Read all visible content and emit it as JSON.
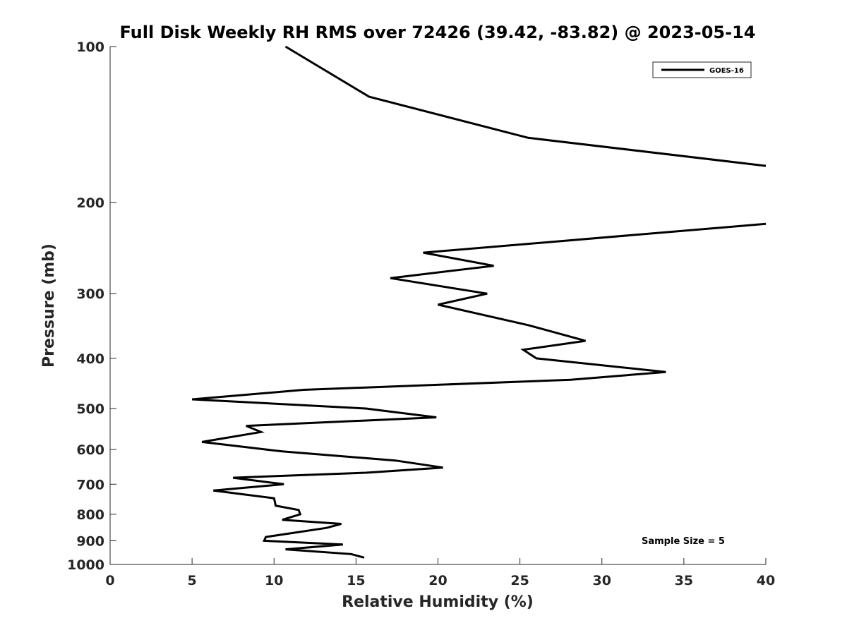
{
  "chart_data": {
    "type": "line",
    "title": "Full Disk Weekly RH RMS over 72426 (39.42, -83.82) @ 2023-05-14",
    "xlabel": "Relative Humidity (%)",
    "ylabel": "Pressure (mb)",
    "xlim": [
      0,
      40
    ],
    "ylim": [
      100,
      1000
    ],
    "y_scale": "log",
    "y_reversed": true,
    "grid": false,
    "x_ticks": [
      0,
      5,
      10,
      15,
      20,
      25,
      30,
      35,
      40
    ],
    "y_ticks": [
      100,
      200,
      300,
      400,
      500,
      600,
      700,
      800,
      900,
      1000
    ],
    "legend": {
      "position": "top-right",
      "entries": [
        "GOES-16"
      ]
    },
    "annotation": "Sample Size = 5",
    "series": [
      {
        "name": "GOES-16",
        "color": "#000000",
        "points": [
          [
            10.7,
            100
          ],
          [
            15.8,
            125
          ],
          [
            25.5,
            150
          ],
          [
            40.0,
            170
          ],
          [
            null,
            180
          ],
          [
            40.0,
            220
          ],
          [
            19.1,
            250
          ],
          [
            23.4,
            265
          ],
          [
            17.1,
            280
          ],
          [
            23.0,
            300
          ],
          [
            20.0,
            315
          ],
          [
            25.5,
            345
          ],
          [
            29.0,
            370
          ],
          [
            25.2,
            385
          ],
          [
            26.0,
            400
          ],
          [
            33.9,
            425
          ],
          [
            28.1,
            440
          ],
          [
            11.8,
            460
          ],
          [
            5.0,
            480
          ],
          [
            15.6,
            500
          ],
          [
            19.9,
            520
          ],
          [
            8.3,
            540
          ],
          [
            9.2,
            555
          ],
          [
            5.6,
            580
          ],
          [
            10.5,
            605
          ],
          [
            17.4,
            630
          ],
          [
            20.3,
            650
          ],
          [
            15.6,
            665
          ],
          [
            7.5,
            680
          ],
          [
            10.6,
            700
          ],
          [
            6.3,
            720
          ],
          [
            10.0,
            745
          ],
          [
            10.1,
            770
          ],
          [
            11.5,
            785
          ],
          [
            11.6,
            800
          ],
          [
            10.5,
            820
          ],
          [
            14.1,
            835
          ],
          [
            13.2,
            850
          ],
          [
            9.5,
            885
          ],
          [
            9.4,
            900
          ],
          [
            14.2,
            915
          ],
          [
            10.7,
            935
          ],
          [
            14.7,
            955
          ],
          [
            15.5,
            970
          ]
        ]
      }
    ]
  }
}
